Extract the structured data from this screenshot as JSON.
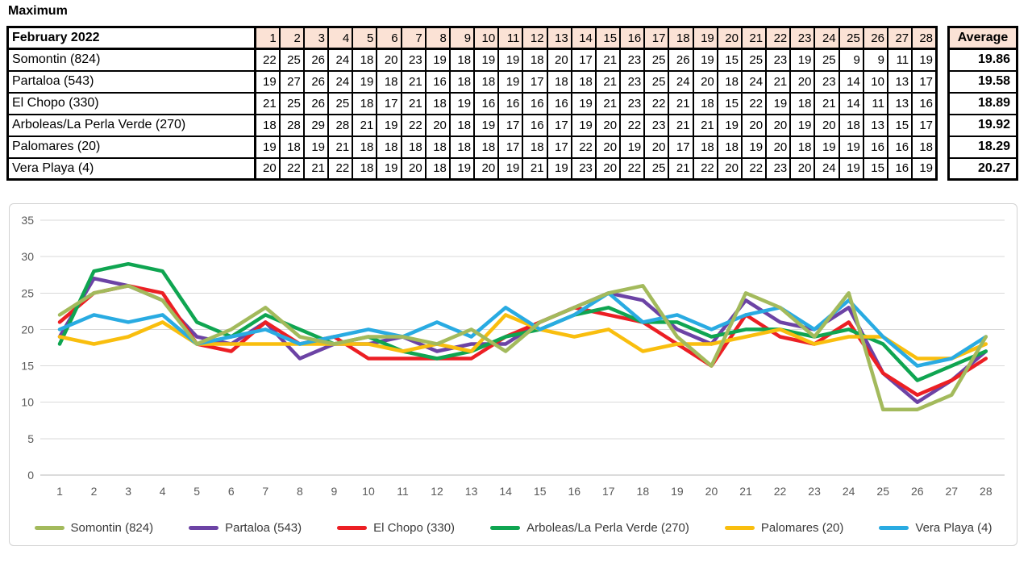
{
  "page_title": "Maximum",
  "colors": {
    "header_bg": "#FBE2D5",
    "grid_line": "#D9D9D9",
    "axis_line": "#B7B7B7",
    "tick_text": "#595959",
    "legend_text": "#3A3A3A",
    "table_border": "#000000"
  },
  "table": {
    "corner_label": "February 2022",
    "days": [
      1,
      2,
      3,
      4,
      5,
      6,
      7,
      8,
      9,
      10,
      11,
      12,
      13,
      14,
      15,
      16,
      17,
      18,
      19,
      20,
      21,
      22,
      23,
      24,
      25,
      26,
      27,
      28
    ],
    "average_header": "Average",
    "rows": [
      {
        "label": "Somontin (824)",
        "values": [
          22,
          25,
          26,
          24,
          18,
          20,
          23,
          19,
          18,
          19,
          19,
          18,
          20,
          17,
          21,
          23,
          25,
          26,
          19,
          15,
          25,
          23,
          19,
          25,
          9,
          9,
          11,
          19
        ],
        "average": "19.86"
      },
      {
        "label": "Partaloa (543)",
        "values": [
          19,
          27,
          26,
          24,
          19,
          18,
          21,
          16,
          18,
          18,
          19,
          17,
          18,
          18,
          21,
          23,
          25,
          24,
          20,
          18,
          24,
          21,
          20,
          23,
          14,
          10,
          13,
          17
        ],
        "average": "19.58"
      },
      {
        "label": "El Chopo (330)",
        "values": [
          21,
          25,
          26,
          25,
          18,
          17,
          21,
          18,
          19,
          16,
          16,
          16,
          16,
          19,
          21,
          23,
          22,
          21,
          18,
          15,
          22,
          19,
          18,
          21,
          14,
          11,
          13,
          16
        ],
        "average": "18.89"
      },
      {
        "label": "Arboleas/La Perla Verde (270)",
        "values": [
          18,
          28,
          29,
          28,
          21,
          19,
          22,
          20,
          18,
          19,
          17,
          16,
          17,
          19,
          20,
          22,
          23,
          21,
          21,
          19,
          20,
          20,
          19,
          20,
          18,
          13,
          15,
          17
        ],
        "average": "19.92"
      },
      {
        "label": "Palomares (20)",
        "values": [
          19,
          18,
          19,
          21,
          18,
          18,
          18,
          18,
          18,
          18,
          17,
          18,
          17,
          22,
          20,
          19,
          20,
          17,
          18,
          18,
          19,
          20,
          18,
          19,
          19,
          16,
          16,
          18
        ],
        "average": "18.29"
      },
      {
        "label": "Vera Playa (4)",
        "values": [
          20,
          22,
          21,
          22,
          18,
          19,
          20,
          18,
          19,
          20,
          19,
          21,
          19,
          23,
          20,
          22,
          25,
          21,
          22,
          20,
          22,
          23,
          20,
          24,
          19,
          15,
          16,
          19
        ],
        "average": "20.27"
      }
    ]
  },
  "chart_data": {
    "type": "line",
    "title": "",
    "xlabel": "",
    "ylabel": "",
    "x": [
      1,
      2,
      3,
      4,
      5,
      6,
      7,
      8,
      9,
      10,
      11,
      12,
      13,
      14,
      15,
      16,
      17,
      18,
      19,
      20,
      21,
      22,
      23,
      24,
      25,
      26,
      27,
      28
    ],
    "ylim": [
      0,
      35
    ],
    "yticks": [
      0,
      5,
      10,
      15,
      20,
      25,
      30,
      35
    ],
    "grid": true,
    "legend_position": "bottom",
    "series": [
      {
        "name": "Somontin (824)",
        "color": "#A3BA5C",
        "values": [
          22,
          25,
          26,
          24,
          18,
          20,
          23,
          19,
          18,
          19,
          19,
          18,
          20,
          17,
          21,
          23,
          25,
          26,
          19,
          15,
          25,
          23,
          19,
          25,
          9,
          9,
          11,
          19
        ]
      },
      {
        "name": "Partaloa (543)",
        "color": "#6C43A5",
        "values": [
          19,
          27,
          26,
          24,
          19,
          18,
          21,
          16,
          18,
          18,
          19,
          17,
          18,
          18,
          21,
          23,
          25,
          24,
          20,
          18,
          24,
          21,
          20,
          23,
          14,
          10,
          13,
          17
        ]
      },
      {
        "name": "El Chopo (330)",
        "color": "#EC1F24",
        "values": [
          21,
          25,
          26,
          25,
          18,
          17,
          21,
          18,
          19,
          16,
          16,
          16,
          16,
          19,
          21,
          23,
          22,
          21,
          18,
          15,
          22,
          19,
          18,
          21,
          14,
          11,
          13,
          16
        ]
      },
      {
        "name": "Arboleas/La Perla Verde (270)",
        "color": "#0FA551",
        "values": [
          18,
          28,
          29,
          28,
          21,
          19,
          22,
          20,
          18,
          19,
          17,
          16,
          17,
          19,
          20,
          22,
          23,
          21,
          21,
          19,
          20,
          20,
          19,
          20,
          18,
          13,
          15,
          17
        ]
      },
      {
        "name": "Palomares (20)",
        "color": "#F9BE0E",
        "values": [
          19,
          18,
          19,
          21,
          18,
          18,
          18,
          18,
          18,
          18,
          17,
          18,
          17,
          22,
          20,
          19,
          20,
          17,
          18,
          18,
          19,
          20,
          18,
          19,
          19,
          16,
          16,
          18
        ]
      },
      {
        "name": "Vera Playa (4)",
        "color": "#29ABE2",
        "values": [
          20,
          22,
          21,
          22,
          18,
          19,
          20,
          18,
          19,
          20,
          19,
          21,
          19,
          23,
          20,
          22,
          25,
          21,
          22,
          20,
          22,
          23,
          20,
          24,
          19,
          15,
          16,
          19
        ]
      }
    ]
  }
}
